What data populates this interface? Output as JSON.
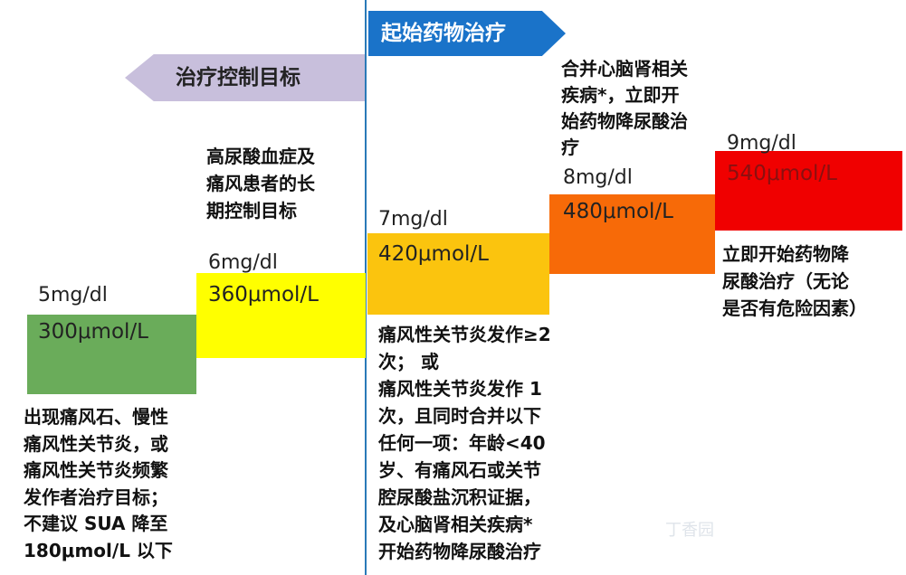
{
  "headers": {
    "start_drug_therapy": "起始药物治疗",
    "treatment_control_target": "治疗控制目标"
  },
  "levels": [
    {
      "mgdl": "5mg/dl",
      "umol": "300μmol/L",
      "color": "#6aac5a"
    },
    {
      "mgdl": "6mg/dl",
      "umol": "360μmol/L",
      "color": "#ffff00"
    },
    {
      "mgdl": "7mg/dl",
      "umol": "420μmol/L",
      "color": "#fbc40e"
    },
    {
      "mgdl": "8mg/dl",
      "umol": "480μmol/L",
      "color": "#f76a08"
    },
    {
      "mgdl": "9mg/dl",
      "umol": "540μmol/L",
      "color": "#f00000"
    }
  ],
  "notes": {
    "long_term_target": "高尿酸血症及\n痛风患者的长\n期控制目标",
    "tophi_target": "出现痛风石、慢性\n痛风性关节炎，或\n痛风性关节炎频繁\n发作者治疗目标；\n不建议 SUA 降至\n180μmol/L 以下",
    "start_420": "痛风性关节炎发作≥2\n次； 或\n痛风性关节炎发作 1\n次，且同时合并以下\n任何一项：年龄<40\n岁、有痛风石或关节\n腔尿酸盐沉积证据，\n及心脑肾相关疾病*\n开始药物降尿酸治疗",
    "start_480": "合并心脑肾相关\n疾病*，立即开\n始药物降尿酸治\n疗",
    "start_540": "立即开始药物降\n尿酸治疗（无论\n是否有危险因素）"
  },
  "watermark": "丁香园"
}
